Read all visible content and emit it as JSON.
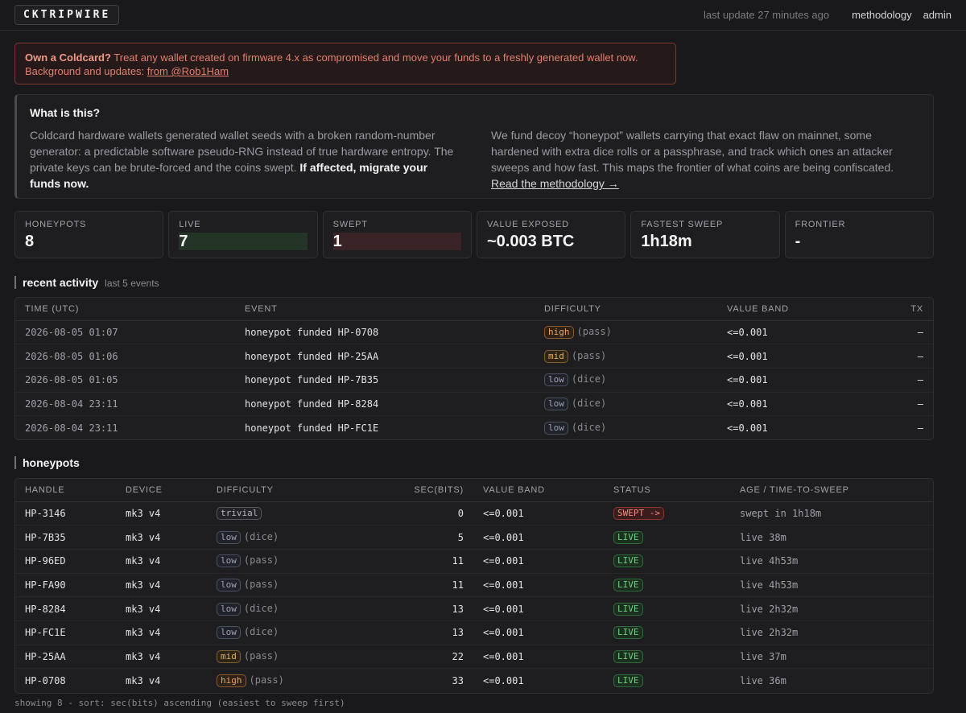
{
  "header": {
    "logo": "CKTRIPWIRE",
    "last_update": "last update 27 minutes ago",
    "nav": [
      "methodology",
      "admin"
    ]
  },
  "alert": {
    "strong": "Own a Coldcard?",
    "text": " Treat any wallet created on firmware 4.x as compromised and move your funds to a freshly generated wallet now.",
    "line2_prefix": "Background and updates: ",
    "link": "from @Rob1Ham"
  },
  "about": {
    "title": "What is this?",
    "left": "Coldcard hardware wallets generated wallet seeds with a broken random-number generator: a predictable software pseudo-RNG instead of true hardware entropy. The private keys can be brute-forced and the coins swept. ",
    "left_bold": "If affected, migrate your funds now.",
    "right": "We fund decoy “honeypot” wallets carrying that exact flaw on mainnet, some hardened with extra dice rolls or a passphrase, and track which ones an attacker sweeps and how fast. This maps the frontier of what coins are being confiscated. ",
    "right_link": "Read the methodology →"
  },
  "stats": [
    {
      "label": "HONEYPOTS",
      "value": "8",
      "kind": ""
    },
    {
      "label": "LIVE",
      "value": "7",
      "kind": "live"
    },
    {
      "label": "SWEPT",
      "value": "1",
      "kind": "swept"
    },
    {
      "label": "VALUE EXPOSED",
      "value": "~0.003 BTC",
      "kind": ""
    },
    {
      "label": "FASTEST SWEEP",
      "value": "1h18m",
      "kind": ""
    },
    {
      "label": "FRONTIER",
      "value": "-",
      "kind": ""
    }
  ],
  "activity": {
    "title": "recent activity",
    "subtitle": "last 5 events",
    "headers": [
      "TIME (UTC)",
      "EVENT",
      "DIFFICULTY",
      "VALUE BAND",
      "TX"
    ],
    "rows": [
      {
        "time": "2026-08-05 01:07",
        "event": "honeypot funded HP-0708",
        "difficulty": "high",
        "note": "(pass)",
        "band": "<=0.001",
        "tx": "–"
      },
      {
        "time": "2026-08-05 01:06",
        "event": "honeypot funded HP-25AA",
        "difficulty": "mid",
        "note": "(pass)",
        "band": "<=0.001",
        "tx": "–"
      },
      {
        "time": "2026-08-05 01:05",
        "event": "honeypot funded HP-7B35",
        "difficulty": "low",
        "note": "(dice)",
        "band": "<=0.001",
        "tx": "–"
      },
      {
        "time": "2026-08-04 23:11",
        "event": "honeypot funded HP-8284",
        "difficulty": "low",
        "note": "(dice)",
        "band": "<=0.001",
        "tx": "–"
      },
      {
        "time": "2026-08-04 23:11",
        "event": "honeypot funded HP-FC1E",
        "difficulty": "low",
        "note": "(dice)",
        "band": "<=0.001",
        "tx": "–"
      }
    ]
  },
  "honeypots": {
    "title": "honeypots",
    "headers": [
      "HANDLE",
      "DEVICE",
      "DIFFICULTY",
      "SEC(BITS)",
      "VALUE BAND",
      "STATUS",
      "AGE / TIME-TO-SWEEP"
    ],
    "rows": [
      {
        "handle": "HP-3146",
        "device": "mk3 v4",
        "difficulty": "trivial",
        "note": "",
        "bits": "0",
        "band": "<=0.001",
        "status": "SWEPT ->",
        "status_kind": "swept",
        "age": "swept in 1h18m"
      },
      {
        "handle": "HP-7B35",
        "device": "mk3 v4",
        "difficulty": "low",
        "note": "(dice)",
        "bits": "5",
        "band": "<=0.001",
        "status": "LIVE",
        "status_kind": "live",
        "age": "live 38m"
      },
      {
        "handle": "HP-96ED",
        "device": "mk3 v4",
        "difficulty": "low",
        "note": "(pass)",
        "bits": "11",
        "band": "<=0.001",
        "status": "LIVE",
        "status_kind": "live",
        "age": "live 4h53m"
      },
      {
        "handle": "HP-FA90",
        "device": "mk3 v4",
        "difficulty": "low",
        "note": "(pass)",
        "bits": "11",
        "band": "<=0.001",
        "status": "LIVE",
        "status_kind": "live",
        "age": "live 4h53m"
      },
      {
        "handle": "HP-8284",
        "device": "mk3 v4",
        "difficulty": "low",
        "note": "(dice)",
        "bits": "13",
        "band": "<=0.001",
        "status": "LIVE",
        "status_kind": "live",
        "age": "live 2h32m"
      },
      {
        "handle": "HP-FC1E",
        "device": "mk3 v4",
        "difficulty": "low",
        "note": "(dice)",
        "bits": "13",
        "band": "<=0.001",
        "status": "LIVE",
        "status_kind": "live",
        "age": "live 2h32m"
      },
      {
        "handle": "HP-25AA",
        "device": "mk3 v4",
        "difficulty": "mid",
        "note": "(pass)",
        "bits": "22",
        "band": "<=0.001",
        "status": "LIVE",
        "status_kind": "live",
        "age": "live 37m"
      },
      {
        "handle": "HP-0708",
        "device": "mk3 v4",
        "difficulty": "high",
        "note": "(pass)",
        "bits": "33",
        "band": "<=0.001",
        "status": "LIVE",
        "status_kind": "live",
        "age": "live 36m"
      }
    ]
  },
  "footer": "showing 8 - sort: sec(bits) ascending (easiest to sweep first)"
}
